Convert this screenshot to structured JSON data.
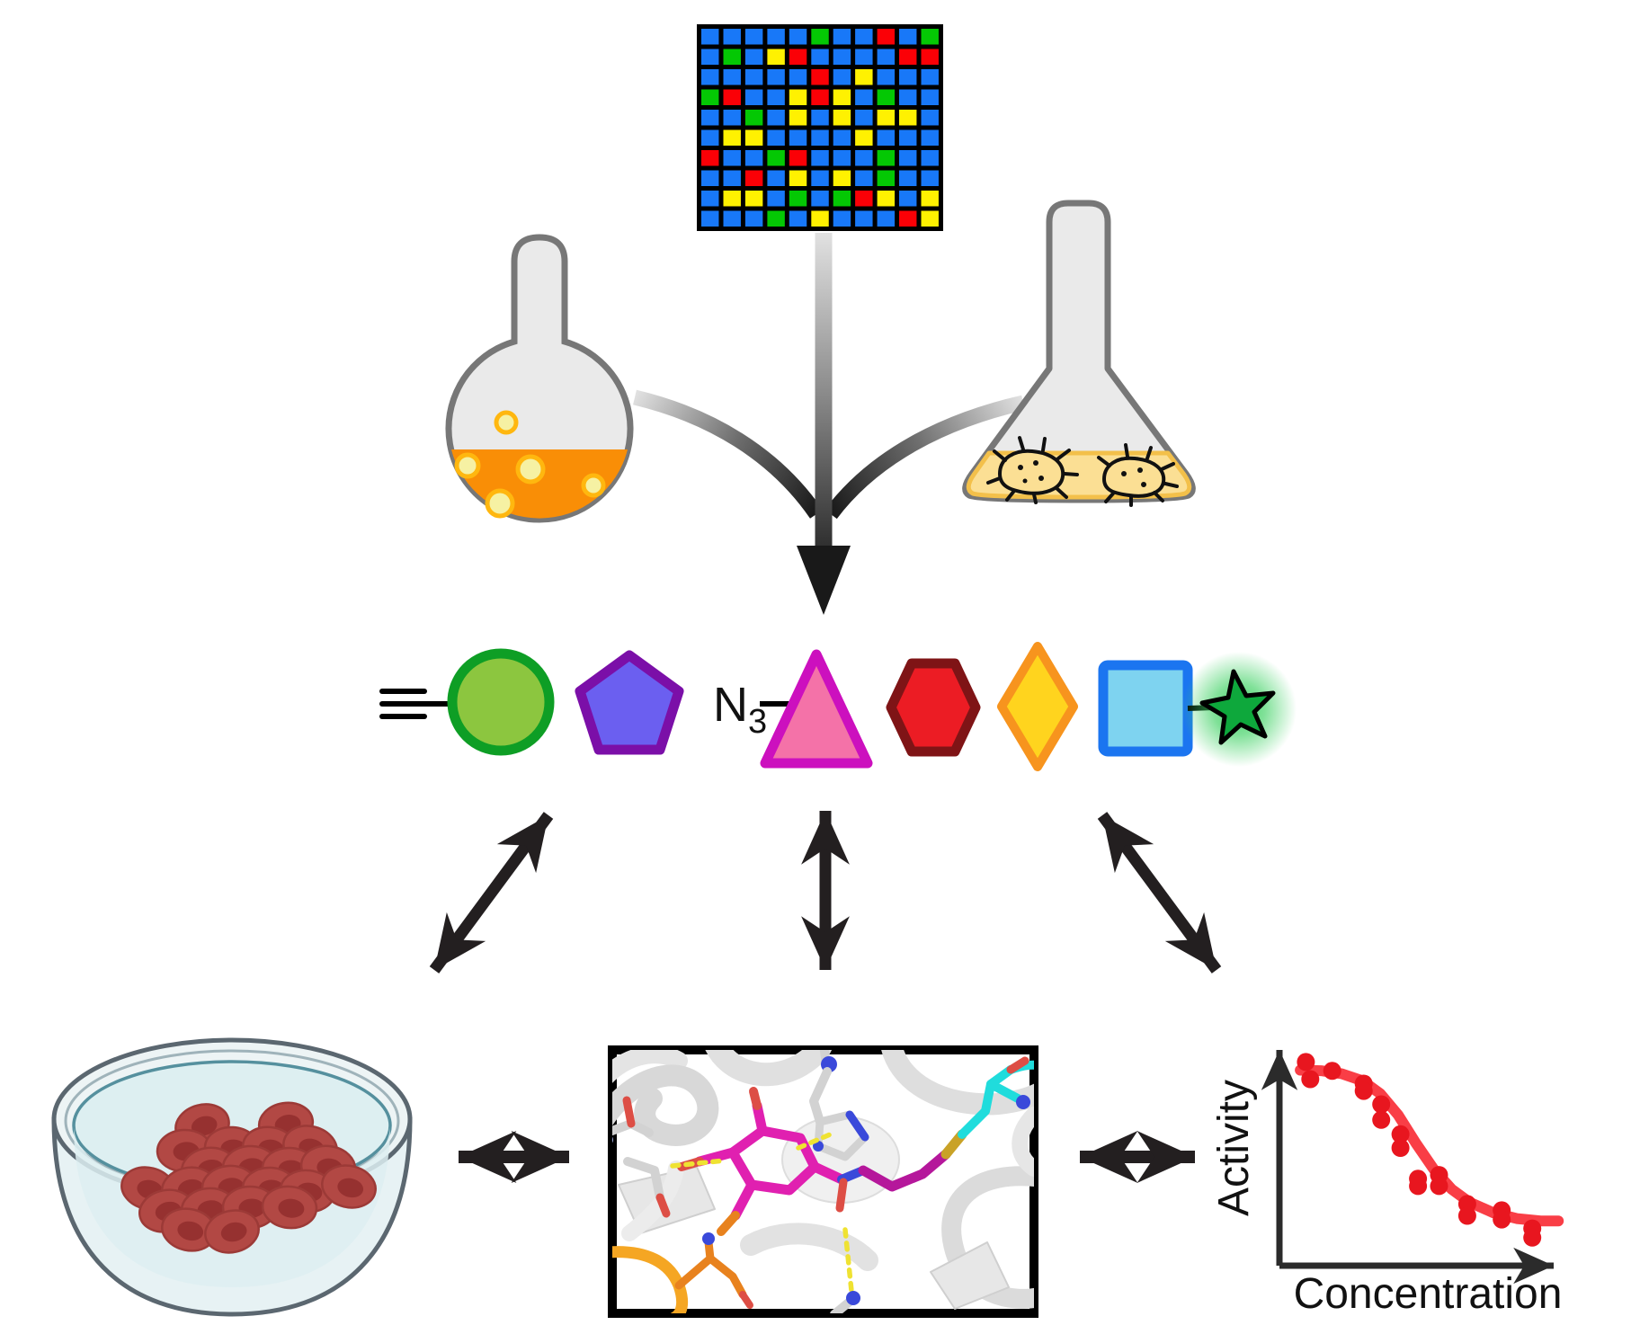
{
  "labels": {
    "azide_main": "N",
    "azide_sub": "3"
  },
  "microarray": {
    "rows": [
      "BBBBBGBBRBG",
      "BGBYRBBBBRR",
      "BBBBBRBYBBB",
      "GRBBYRYBGBB",
      "BBGBYBYBYYB",
      "BYYBBBBYBBB",
      "RBBGRBBBGBB",
      "BBRBYBYBGBB",
      "BYYBGBGRYBY",
      "BBBGBYBBBRY"
    ],
    "palette": {
      "B": "#1878F8",
      "G": "#04C804",
      "R": "#FB0006",
      "Y": "#FFF101"
    },
    "cols": 11,
    "row_count": 10
  },
  "flasks": {
    "round_flask_liquid": "#F98E06",
    "round_flask_bubble": "#F6F1A3",
    "erlenmeyer_liquid": "#FBDF94",
    "glass_fill": "#EAEAEA",
    "glass_stroke": "#777777",
    "bacteria_count": 2
  },
  "glycans": {
    "symbols": [
      {
        "name": "alkyne-circle",
        "shape": "circle",
        "fill": "#8CC63F",
        "stroke": "#0E9E25"
      },
      {
        "name": "pentagon",
        "shape": "pentagon",
        "fill": "#6B5FF0",
        "stroke": "#7B0FA8"
      },
      {
        "name": "azide-triangle",
        "shape": "triangle",
        "fill": "#F472A8",
        "stroke": "#CC10BE"
      },
      {
        "name": "hexagon",
        "shape": "hexagon",
        "fill": "#EC1C24",
        "stroke": "#7F1416"
      },
      {
        "name": "diamond",
        "shape": "diamond",
        "fill": "#FFD41E",
        "stroke": "#F7941E"
      },
      {
        "name": "square",
        "shape": "square",
        "fill": "#7ED3F0",
        "stroke": "#1B75F0"
      },
      {
        "name": "fluorophore-star",
        "shape": "star",
        "fill": "#0EA83C",
        "stroke": "#000000",
        "glow": "#2ECC40"
      }
    ]
  },
  "petri": {
    "cell_count": 22,
    "cell_fill": "#B24844",
    "nucleus_fill": "#963130",
    "cells": [
      [
        225,
        1252
      ],
      [
        318,
        1250
      ],
      [
        205,
        1280
      ],
      [
        258,
        1277
      ],
      [
        300,
        1277
      ],
      [
        345,
        1276
      ],
      [
        232,
        1300
      ],
      [
        278,
        1298
      ],
      [
        322,
        1300
      ],
      [
        365,
        1298
      ],
      [
        165,
        1322
      ],
      [
        210,
        1322
      ],
      [
        255,
        1320
      ],
      [
        300,
        1322
      ],
      [
        342,
        1325
      ],
      [
        388,
        1320
      ],
      [
        185,
        1347
      ],
      [
        232,
        1345
      ],
      [
        278,
        1343
      ],
      [
        322,
        1343
      ],
      [
        210,
        1368
      ],
      [
        258,
        1370
      ]
    ]
  },
  "chart_data": {
    "type": "scatter",
    "title": "",
    "xlabel": "Concentration",
    "ylabel": "Activity",
    "x_range": [
      0,
      1
    ],
    "y_range": [
      0,
      1
    ],
    "grid": false,
    "curve_shape": "decreasing sigmoid dose-response",
    "line_color": "#F93E46",
    "point_color": "#E8161F",
    "curve_points": [
      [
        0.07,
        0.83
      ],
      [
        0.14,
        0.828
      ],
      [
        0.21,
        0.815
      ],
      [
        0.28,
        0.785
      ],
      [
        0.34,
        0.73
      ],
      [
        0.4,
        0.64
      ],
      [
        0.46,
        0.52
      ],
      [
        0.52,
        0.41
      ],
      [
        0.58,
        0.325
      ],
      [
        0.64,
        0.27
      ],
      [
        0.72,
        0.225
      ],
      [
        0.8,
        0.2
      ],
      [
        0.88,
        0.19
      ],
      [
        0.94,
        0.19
      ]
    ],
    "points": [
      [
        0.089,
        0.865
      ],
      [
        0.104,
        0.792
      ],
      [
        0.178,
        0.827
      ],
      [
        0.284,
        0.773
      ],
      [
        0.284,
        0.742
      ],
      [
        0.343,
        0.685
      ],
      [
        0.343,
        0.619
      ],
      [
        0.408,
        0.558
      ],
      [
        0.408,
        0.5
      ],
      [
        0.467,
        0.369
      ],
      [
        0.467,
        0.338
      ],
      [
        0.538,
        0.385
      ],
      [
        0.538,
        0.338
      ],
      [
        0.633,
        0.262
      ],
      [
        0.633,
        0.212
      ],
      [
        0.749,
        0.235
      ],
      [
        0.749,
        0.196
      ],
      [
        0.852,
        0.158
      ],
      [
        0.852,
        0.119
      ]
    ]
  },
  "arrows": {
    "color": "#231F20",
    "merge_gradient": [
      "#DDDDDD",
      "#161616"
    ],
    "exchange_arrow_count": 3,
    "horizontal_arrow_count": 2
  }
}
